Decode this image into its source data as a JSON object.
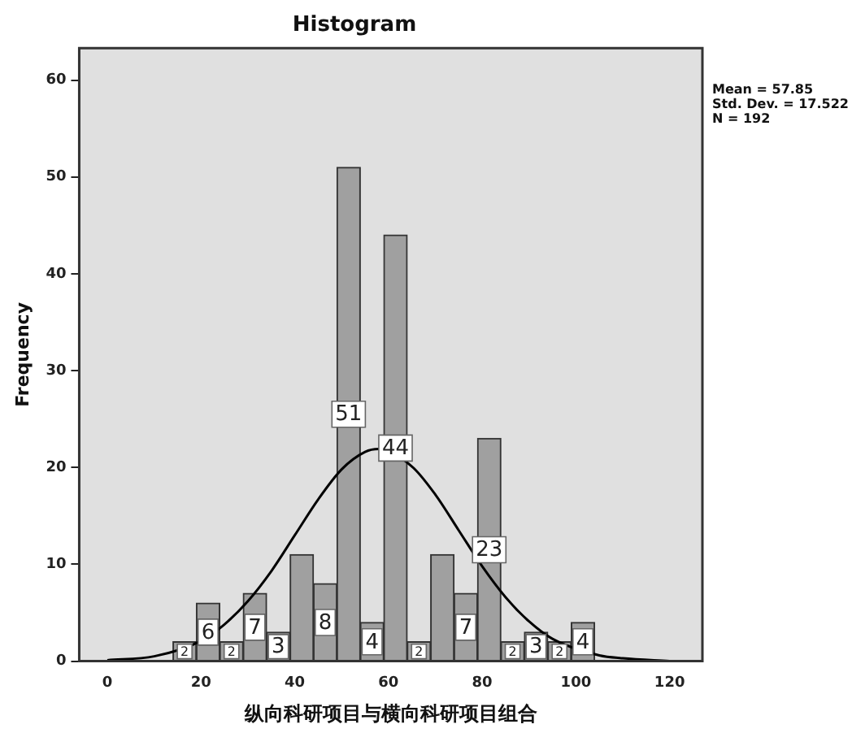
{
  "chart_data": {
    "type": "histogram",
    "title": "Histogram",
    "xlabel": "纵向科研项目与横向科研项目组合",
    "ylabel": "Frequency",
    "bins": [
      14,
      19,
      24,
      29,
      34,
      39,
      44,
      49,
      54,
      59,
      64,
      69,
      74,
      79,
      84,
      89,
      94,
      99,
      104
    ],
    "values": [
      2,
      6,
      2,
      7,
      3,
      11,
      8,
      51,
      4,
      44,
      2,
      11,
      7,
      23,
      2,
      3,
      2,
      4
    ],
    "value_labels": [
      "2",
      "6",
      "2",
      "7",
      "3",
      null,
      "8",
      "51",
      "4",
      "44",
      "2",
      null,
      "7",
      "23",
      "2",
      "3",
      "2",
      "4"
    ],
    "color": "#a0a0a0",
    "series": [
      {
        "type": "line",
        "color": "#000000",
        "x": [
          0,
          10,
          20,
          25,
          30,
          35,
          40,
          45,
          50,
          55,
          57.85,
          65,
          70,
          75,
          80,
          85,
          90,
          95,
          105,
          110,
          120
        ],
        "values": [
          0.1,
          0.5,
          2.1,
          3.8,
          6.2,
          9.3,
          13,
          16.7,
          19.8,
          21.6,
          21.9,
          20.1,
          17.2,
          13.5,
          9.8,
          6.6,
          4.1,
          2.3,
          0.6,
          0.3,
          0
        ]
      }
    ],
    "xlim": [
      -6,
      127
    ],
    "xticks": [
      0,
      20,
      40,
      60,
      80,
      100,
      120
    ],
    "ylim": [
      0,
      63.3
    ],
    "yticks": [
      0,
      10,
      20,
      30,
      40,
      50,
      60
    ],
    "annotations": [
      "Mean = 57.85",
      "Std. Dev. = 17.522",
      "N = 192"
    ],
    "grid": false,
    "legend": false
  }
}
